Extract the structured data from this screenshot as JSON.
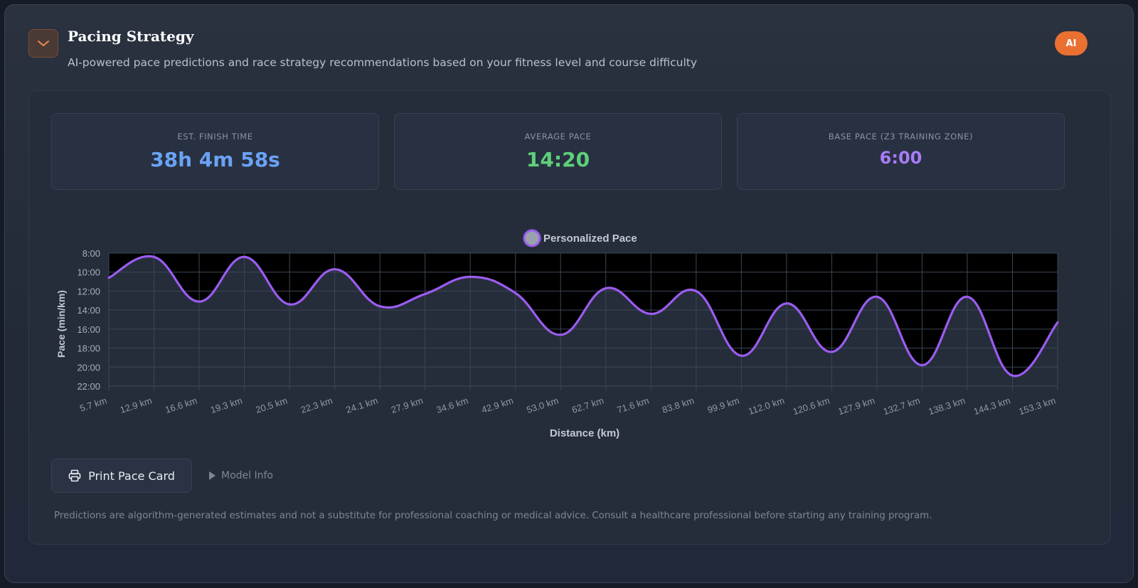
{
  "header": {
    "title": "Pacing Strategy",
    "subtitle": "AI-powered pace predictions and race strategy recommendations based on your fitness level and course difficulty",
    "badge": "AI",
    "collapse_icon": "chevron-down-icon"
  },
  "stats": [
    {
      "label": "EST. FINISH TIME",
      "value": "38h 4m 58s",
      "color": "#6aa2f5"
    },
    {
      "label": "AVERAGE PACE",
      "value": "14:20",
      "color": "#5fd07a"
    },
    {
      "label": "BASE PACE (Z3 TRAINING ZONE)",
      "value": "6:00",
      "color": "#a77cf5"
    }
  ],
  "chart_data": {
    "type": "line",
    "legend": [
      "Personalized Pace"
    ],
    "legend_position": "top-center",
    "xlabel": "Distance (km)",
    "ylabel": "Pace (min/km)",
    "y_reversed": true,
    "ylim": [
      8,
      22
    ],
    "y_ticks": [
      "8:00",
      "10:00",
      "12:00",
      "14:00",
      "16:00",
      "18:00",
      "20:00",
      "22:00"
    ],
    "categories": [
      "5.7 km",
      "12.9 km",
      "16.6 km",
      "19.3 km",
      "20.5 km",
      "22.3 km",
      "24.1 km",
      "27.9 km",
      "34.6 km",
      "42.9 km",
      "53.0 km",
      "62.7 km",
      "71.6 km",
      "83.8 km",
      "99.9 km",
      "112.0 km",
      "120.6 km",
      "127.9 km",
      "132.7 km",
      "138.3 km",
      "144.3 km",
      "153.3 km"
    ],
    "series": [
      {
        "name": "Personalized Pace",
        "color": "#9b5cf0",
        "values": [
          10.6,
          8.4,
          13.1,
          8.4,
          13.4,
          9.7,
          13.6,
          12.3,
          10.5,
          12.2,
          16.6,
          11.7,
          14.4,
          12.0,
          18.8,
          13.3,
          18.4,
          12.6,
          19.8,
          12.6,
          20.9,
          15.3
        ]
      }
    ],
    "grid": true
  },
  "actions": {
    "print_label": "Print Pace Card",
    "model_info_label": "Model Info"
  },
  "disclaimer": "Predictions are algorithm-generated estimates and not a substitute for professional coaching or medical advice. Consult a healthcare professional before starting any training program."
}
